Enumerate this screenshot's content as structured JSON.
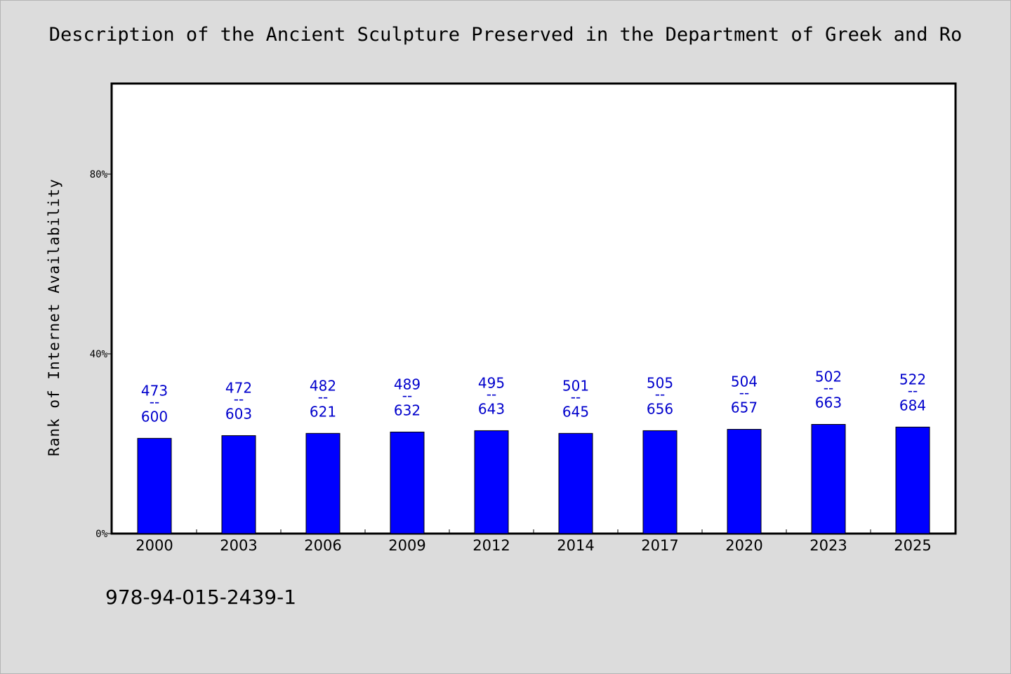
{
  "chart_data": {
    "type": "bar",
    "title": "Description of the Ancient Sculpture Preserved in the Department of Greek and Ro",
    "xlabel": "",
    "ylabel": "Rank of Internet Availability",
    "ylim": [
      0,
      100
    ],
    "yticks": [
      "0%",
      "40%",
      "80%"
    ],
    "ytick_values": [
      0,
      40,
      80
    ],
    "grid": false,
    "bar_color": "#0000ff",
    "label_color": "#0000cc",
    "categories": [
      "2000",
      "2003",
      "2006",
      "2009",
      "2012",
      "2014",
      "2017",
      "2020",
      "2023",
      "2025"
    ],
    "values": [
      21.2,
      21.8,
      22.3,
      22.6,
      22.9,
      22.3,
      22.9,
      23.2,
      24.3,
      23.7
    ],
    "labels": [
      {
        "top": "473",
        "sep": "--",
        "bottom": "600"
      },
      {
        "top": "472",
        "sep": "--",
        "bottom": "603"
      },
      {
        "top": "482",
        "sep": "--",
        "bottom": "621"
      },
      {
        "top": "489",
        "sep": "--",
        "bottom": "632"
      },
      {
        "top": "495",
        "sep": "--",
        "bottom": "643"
      },
      {
        "top": "501",
        "sep": "--",
        "bottom": "645"
      },
      {
        "top": "505",
        "sep": "--",
        "bottom": "656"
      },
      {
        "top": "504",
        "sep": "--",
        "bottom": "657"
      },
      {
        "top": "502",
        "sep": "--",
        "bottom": "663"
      },
      {
        "top": "522",
        "sep": "--",
        "bottom": "684"
      }
    ]
  },
  "footer_text": "978-94-015-2439-1"
}
